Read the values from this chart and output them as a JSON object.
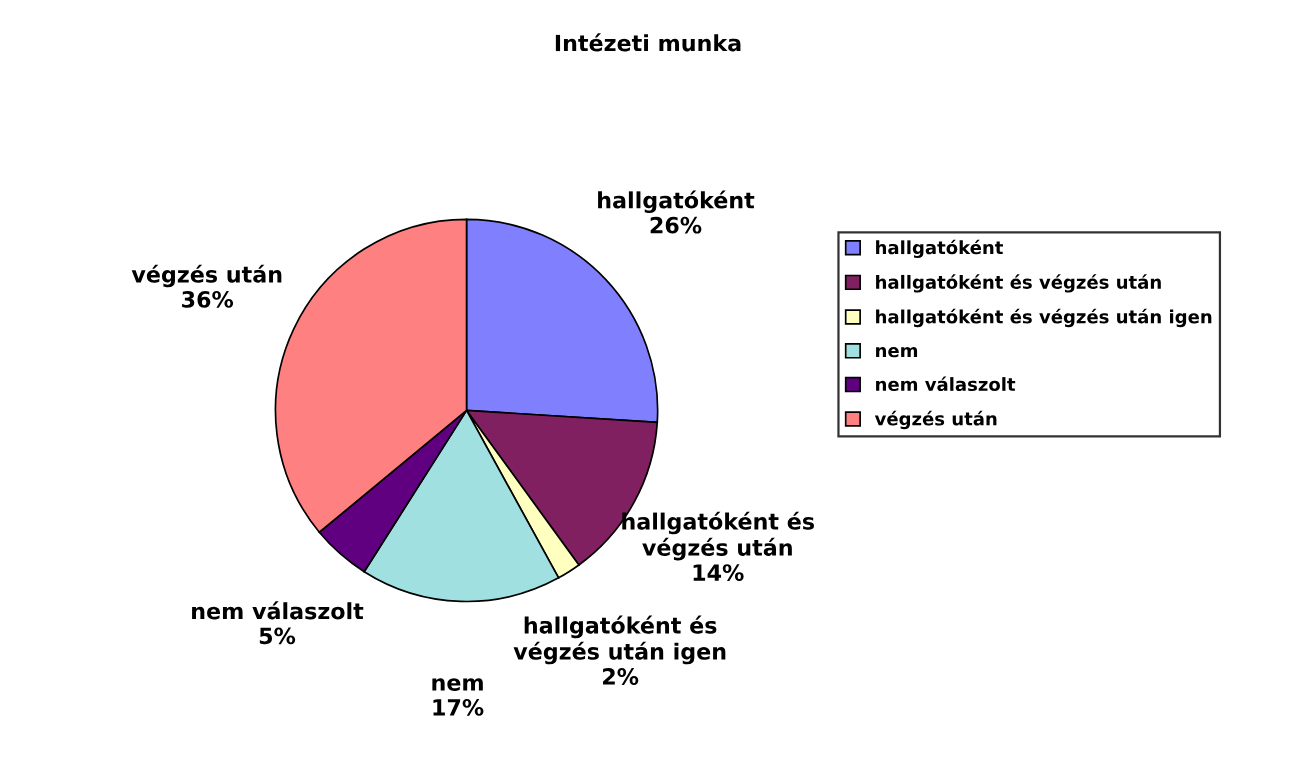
{
  "chart_data": {
    "type": "pie",
    "title": "Intézeti munka",
    "categories": [
      "hallgatóként",
      "hallgatóként és végzés után",
      "hallgatóként és végzés után igen",
      "nem",
      "nem válaszolt",
      "végzés után"
    ],
    "values": [
      26,
      14,
      2,
      17,
      5,
      36
    ],
    "colors": [
      "#8080ff",
      "#802060",
      "#ffffc0",
      "#a0e0e0",
      "#600080",
      "#ff8080"
    ],
    "value_labels": [
      "26%",
      "14%",
      "2%",
      "17%",
      "5%",
      "36%"
    ],
    "legend": "right"
  }
}
